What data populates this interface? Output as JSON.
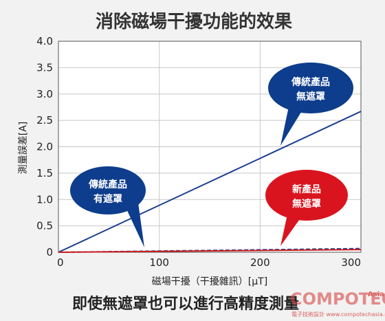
{
  "chart_data": {
    "type": "line",
    "title": "消除磁場干擾功能的效果",
    "xlabel": "磁場干擾（干擾雜訊）[μT]",
    "ylabel": "測量誤差[A]",
    "xlim": [
      0,
      300
    ],
    "ylim": [
      0,
      4.0
    ],
    "x_ticks": [
      "0",
      "100",
      "200",
      "300"
    ],
    "y_ticks": [
      "0",
      "0.5",
      "1.0",
      "1.5",
      "2.0",
      "2.5",
      "3.0",
      "3.5",
      "4.0"
    ],
    "grid": true,
    "series": [
      {
        "color": "#1a3d8f",
        "style": "solid",
        "x": [
          0,
          300
        ],
        "y": [
          0,
          2.67
        ]
      },
      {
        "color": "#1a3d8f",
        "style": "dashed",
        "x": [
          0,
          300
        ],
        "y": [
          0,
          0.07
        ]
      },
      {
        "color": "#cc1f1f",
        "style": "solid",
        "x": [
          0,
          300
        ],
        "y": [
          0,
          0.05
        ]
      }
    ],
    "annotations": [
      {
        "line1": "傳統產品",
        "line2": "無遮罩",
        "color": "#0d3d8c"
      },
      {
        "line1": "傳統產品",
        "line2": "有遮罩",
        "color": "#0d3d8c"
      },
      {
        "line1": "新產品",
        "line2": "無遮罩",
        "color": "#d9141e"
      }
    ]
  },
  "footer_text": "即使無遮罩也可以進行高精度測量",
  "watermark": {
    "brand": "COMPOTECH",
    "suffix": "Asia",
    "sub": "電子技術設計 www.compotechasia.com"
  }
}
